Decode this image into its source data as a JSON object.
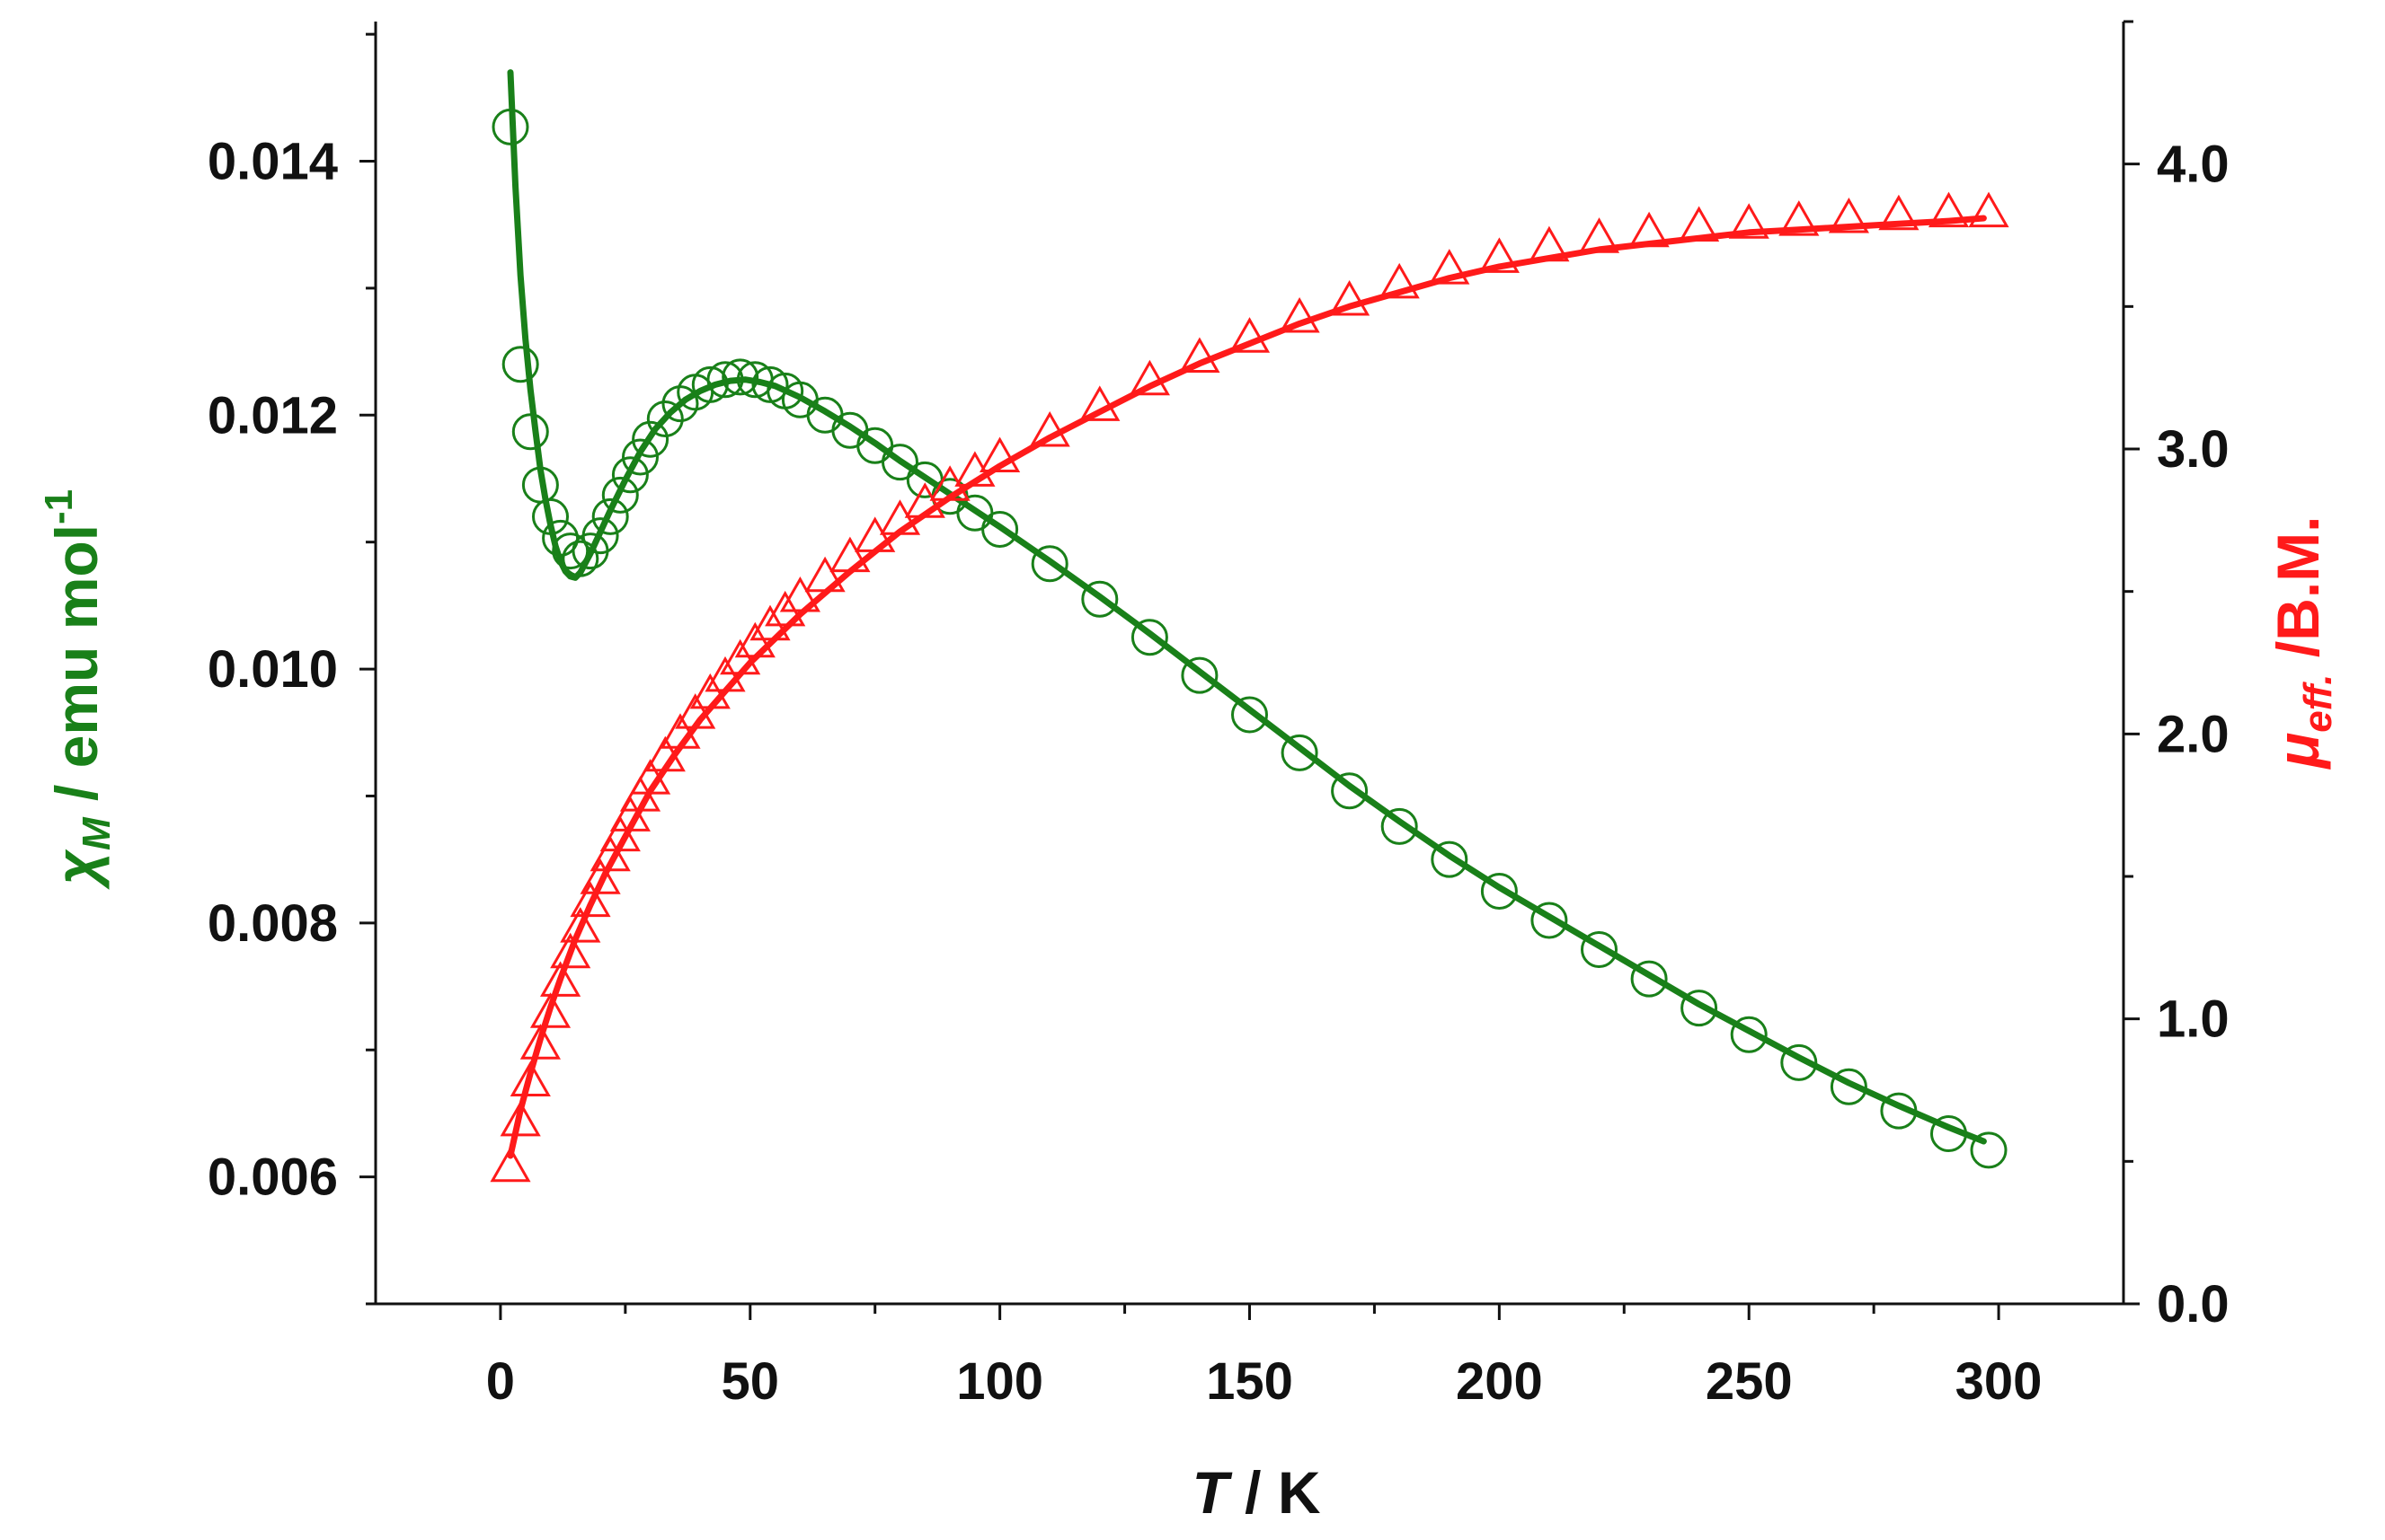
{
  "colors": {
    "left_series": "#198019",
    "right_series": "#ff1a1a",
    "axis": "#111111"
  },
  "chart_data": {
    "type": "scatter",
    "x_axis": {
      "label_italic": "T",
      "label_rest": " / K",
      "range": [
        -25,
        325
      ],
      "ticks": [
        0,
        50,
        100,
        150,
        200,
        250,
        300
      ],
      "tick_labels": [
        "0",
        "50",
        "100",
        "150",
        "200",
        "250",
        "300"
      ],
      "minor_step": 25
    },
    "y_left": {
      "symbol": "χ",
      "subscript": "M",
      "label_rest": " / emu mol",
      "superscript": "-1",
      "range": [
        0.005,
        0.0151
      ],
      "ticks": [
        0.006,
        0.008,
        0.01,
        0.012,
        0.014
      ],
      "tick_labels": [
        "0.006",
        "0.008",
        "0.010",
        "0.012",
        "0.014"
      ],
      "minor_step": 0.001
    },
    "y_right": {
      "symbol": "μ",
      "subscript": "eff.",
      "label_rest": " /B.M.",
      "range": [
        0,
        4.5
      ],
      "ticks": [
        0,
        1,
        2,
        3,
        4
      ],
      "tick_labels": [
        "0.0",
        "1.0",
        "2.0",
        "3.0",
        "4.0"
      ],
      "minor_step": 0.5
    },
    "series": [
      {
        "name": "chi_M experimental",
        "axis": "left",
        "marker": "circle-open",
        "x": [
          2,
          4,
          6,
          8,
          10,
          12,
          14,
          16,
          18,
          20,
          22,
          24,
          26,
          28,
          30,
          33,
          36,
          39,
          42,
          45,
          48,
          51,
          54,
          57,
          60,
          65,
          70,
          75,
          80,
          85,
          90,
          95,
          100,
          110,
          120,
          130,
          140,
          150,
          160,
          170,
          180,
          190,
          200,
          210,
          220,
          230,
          240,
          250,
          260,
          270,
          280,
          290,
          298
        ],
        "y": [
          0.01427,
          0.0124,
          0.01187,
          0.01145,
          0.0112,
          0.01103,
          0.01093,
          0.01087,
          0.01093,
          0.01105,
          0.0112,
          0.01137,
          0.01153,
          0.01167,
          0.01181,
          0.01197,
          0.01209,
          0.01218,
          0.01224,
          0.01228,
          0.0123,
          0.01228,
          0.01224,
          0.01219,
          0.01212,
          0.012,
          0.01188,
          0.01176,
          0.01163,
          0.01149,
          0.01136,
          0.01123,
          0.0111,
          0.01083,
          0.01055,
          0.01025,
          0.00995,
          0.00964,
          0.00934,
          0.00904,
          0.00876,
          0.0085,
          0.00825,
          0.00802,
          0.00779,
          0.00756,
          0.00733,
          0.00712,
          0.0069,
          0.00671,
          0.00652,
          0.00634,
          0.00621
        ]
      },
      {
        "name": "chi_M fit",
        "axis": "left",
        "marker": "line",
        "x": [
          2,
          3,
          4,
          5,
          6,
          7,
          8,
          9,
          10,
          11,
          12,
          13,
          14,
          15,
          16,
          18,
          20,
          22,
          25,
          28,
          31,
          34,
          37,
          40,
          43,
          46,
          49,
          52,
          55,
          60,
          65,
          70,
          75,
          80,
          90,
          100,
          110,
          120,
          130,
          140,
          150,
          160,
          170,
          180,
          190,
          200,
          210,
          220,
          230,
          240,
          250,
          260,
          270,
          280,
          290,
          297
        ],
        "y": [
          0.0147,
          0.0138,
          0.0131,
          0.0126,
          0.0122,
          0.01188,
          0.01157,
          0.01134,
          0.01114,
          0.01097,
          0.01085,
          0.01077,
          0.01073,
          0.01072,
          0.01076,
          0.01091,
          0.01108,
          0.01125,
          0.01149,
          0.01171,
          0.01189,
          0.01202,
          0.01212,
          0.01219,
          0.01224,
          0.01227,
          0.01228,
          0.01226,
          0.01223,
          0.01214,
          0.01203,
          0.01191,
          0.01178,
          0.01164,
          0.01138,
          0.01112,
          0.01085,
          0.01057,
          0.01028,
          0.00998,
          0.00968,
          0.00938,
          0.00908,
          0.0088,
          0.00853,
          0.00828,
          0.00805,
          0.00782,
          0.00759,
          0.00736,
          0.00715,
          0.00694,
          0.00674,
          0.00656,
          0.00639,
          0.00628
        ]
      },
      {
        "name": "mu_eff experimental",
        "axis": "right",
        "marker": "triangle-open",
        "x": [
          2,
          4,
          6,
          8,
          10,
          12,
          14,
          16,
          18,
          20,
          22,
          24,
          26,
          28,
          30,
          33,
          36,
          39,
          42,
          45,
          48,
          51,
          54,
          57,
          60,
          65,
          70,
          75,
          80,
          85,
          90,
          95,
          100,
          110,
          120,
          130,
          140,
          150,
          160,
          170,
          180,
          190,
          200,
          210,
          220,
          230,
          240,
          250,
          260,
          270,
          280,
          290,
          298
        ],
        "y": [
          0.48,
          0.64,
          0.78,
          0.91,
          1.02,
          1.13,
          1.23,
          1.32,
          1.41,
          1.49,
          1.57,
          1.64,
          1.71,
          1.78,
          1.84,
          1.92,
          2.0,
          2.07,
          2.14,
          2.2,
          2.26,
          2.32,
          2.38,
          2.43,
          2.48,
          2.55,
          2.62,
          2.69,
          2.75,
          2.81,
          2.87,
          2.92,
          2.97,
          3.06,
          3.15,
          3.24,
          3.32,
          3.39,
          3.46,
          3.52,
          3.58,
          3.63,
          3.67,
          3.71,
          3.74,
          3.76,
          3.78,
          3.79,
          3.8,
          3.81,
          3.82,
          3.83,
          3.83
        ]
      },
      {
        "name": "mu_eff fit",
        "axis": "right",
        "marker": "line",
        "x": [
          2,
          4,
          6,
          8,
          10,
          12,
          15,
          18,
          21,
          25,
          30,
          35,
          40,
          45,
          50,
          60,
          70,
          80,
          90,
          100,
          110,
          120,
          130,
          140,
          150,
          160,
          170,
          180,
          190,
          200,
          210,
          220,
          230,
          240,
          250,
          260,
          270,
          280,
          290,
          297
        ],
        "y": [
          0.52,
          0.68,
          0.81,
          0.93,
          1.04,
          1.14,
          1.28,
          1.4,
          1.51,
          1.64,
          1.8,
          1.93,
          2.05,
          2.15,
          2.25,
          2.42,
          2.57,
          2.71,
          2.83,
          2.94,
          3.04,
          3.13,
          3.22,
          3.3,
          3.37,
          3.44,
          3.5,
          3.55,
          3.6,
          3.64,
          3.67,
          3.7,
          3.72,
          3.74,
          3.76,
          3.77,
          3.78,
          3.79,
          3.8,
          3.81
        ]
      }
    ]
  }
}
